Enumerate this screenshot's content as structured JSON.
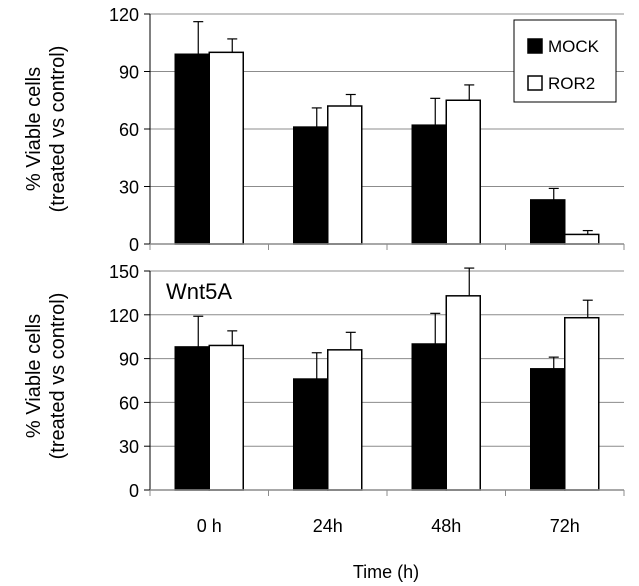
{
  "chart_data": [
    {
      "type": "bar",
      "title": "",
      "ylabel_lines": [
        "% Viable cells",
        "(treated vs control)"
      ],
      "ylim": [
        0,
        120
      ],
      "yticks": [
        "0",
        "30",
        "60",
        "90",
        "120"
      ],
      "categories": [
        "0 h",
        "24h",
        "48h",
        "72h"
      ],
      "series": [
        {
          "name": "MOCK",
          "color": "#000000",
          "values": [
            99,
            61,
            62,
            23
          ],
          "errors": [
            17,
            10,
            14,
            6
          ]
        },
        {
          "name": "ROR2",
          "color": "#ffffff",
          "values": [
            100,
            72,
            75,
            5
          ],
          "errors": [
            7,
            6,
            8,
            2
          ]
        }
      ],
      "legend_position": "top-right"
    },
    {
      "type": "bar",
      "annotation": "Wnt5A",
      "ylabel_lines": [
        "% Viable cells",
        "(treated vs control)"
      ],
      "ylim": [
        0,
        150
      ],
      "yticks": [
        "0",
        "30",
        "60",
        "90",
        "120",
        "150"
      ],
      "categories": [
        "0 h",
        "24h",
        "48h",
        "72h"
      ],
      "series": [
        {
          "name": "MOCK",
          "color": "#000000",
          "values": [
            98,
            76,
            100,
            83
          ],
          "errors": [
            21,
            18,
            21,
            8
          ]
        },
        {
          "name": "ROR2",
          "color": "#ffffff",
          "values": [
            99,
            96,
            133,
            118
          ],
          "errors": [
            10,
            12,
            19,
            12
          ]
        }
      ]
    }
  ],
  "xlabel": "Time (h)"
}
